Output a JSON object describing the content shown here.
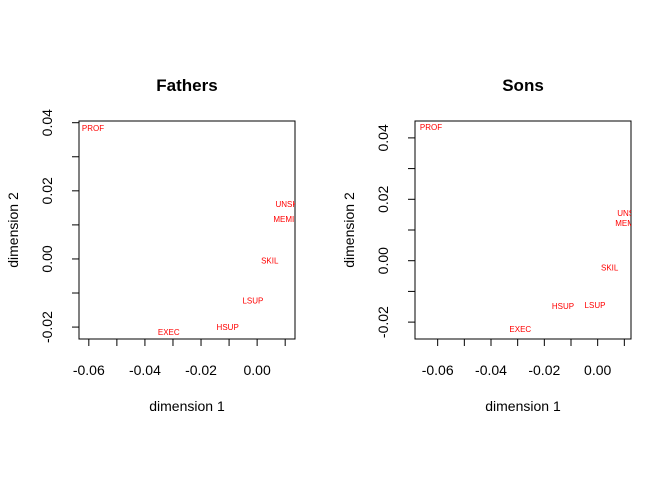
{
  "chart_data": [
    {
      "type": "scatter",
      "title": "Fathers",
      "xlabel": "dimension 1",
      "ylabel": "dimension 2",
      "xlim": [
        -0.0635,
        0.0135
      ],
      "ylim": [
        -0.0235,
        0.0405
      ],
      "xticks": [
        -0.06,
        -0.05,
        -0.04,
        -0.03,
        -0.02,
        -0.01,
        0.0,
        0.01
      ],
      "yticks": [
        -0.03,
        -0.02,
        -0.01,
        0.0,
        0.01,
        0.02,
        0.03,
        0.04
      ],
      "xtick_labels": [
        [
          "-0.06",
          -0.06
        ],
        [
          "-0.04",
          -0.04
        ],
        [
          "-0.02",
          -0.02
        ],
        [
          "0.00",
          0.0
        ]
      ],
      "ytick_labels": [
        [
          "-0.02",
          -0.02
        ],
        [
          "0.00",
          0.0
        ],
        [
          "0.02",
          0.02
        ],
        [
          "0.04",
          0.04
        ]
      ],
      "color": "#ff0000",
      "points": [
        {
          "label": "PROF",
          "x": -0.0585,
          "y": 0.0385
        },
        {
          "label": "UNSK",
          "x": 0.0105,
          "y": 0.0162
        },
        {
          "label": "MEMI",
          "x": 0.0095,
          "y": 0.0117
        },
        {
          "label": "SKIL",
          "x": 0.0045,
          "y": -0.0005
        },
        {
          "label": "LSUP",
          "x": -0.0015,
          "y": -0.0122
        },
        {
          "label": "HSUP",
          "x": -0.0105,
          "y": -0.02
        },
        {
          "label": "EXEC",
          "x": -0.0315,
          "y": -0.0215
        }
      ]
    },
    {
      "type": "scatter",
      "title": "Sons",
      "xlabel": "dimension 1",
      "ylabel": "dimension 2",
      "xlim": [
        -0.0685,
        0.0125
      ],
      "ylim": [
        -0.0255,
        0.0455
      ],
      "xticks": [
        -0.06,
        -0.05,
        -0.04,
        -0.03,
        -0.02,
        -0.01,
        0.0,
        0.01
      ],
      "yticks": [
        -0.03,
        -0.02,
        -0.01,
        0.0,
        0.01,
        0.02,
        0.03,
        0.04
      ],
      "xtick_labels": [
        [
          "-0.06",
          -0.06
        ],
        [
          "-0.04",
          -0.04
        ],
        [
          "-0.02",
          -0.02
        ],
        [
          "0.00",
          0.0
        ]
      ],
      "ytick_labels": [
        [
          "-0.02",
          -0.02
        ],
        [
          "0.00",
          0.0
        ],
        [
          "0.02",
          0.02
        ],
        [
          "0.04",
          0.04
        ]
      ],
      "color": "#ff0000",
      "points": [
        {
          "label": "PROF",
          "x": -0.0625,
          "y": 0.0435
        },
        {
          "label": "UNSK",
          "x": 0.0115,
          "y": 0.0155
        },
        {
          "label": "MEMI",
          "x": 0.0105,
          "y": 0.0122
        },
        {
          "label": "SKIL",
          "x": 0.0045,
          "y": -0.0022
        },
        {
          "label": "LSUP",
          "x": -0.001,
          "y": -0.0145
        },
        {
          "label": "HSUP",
          "x": -0.013,
          "y": -0.0148
        },
        {
          "label": "EXEC",
          "x": -0.029,
          "y": -0.0222
        }
      ]
    }
  ]
}
